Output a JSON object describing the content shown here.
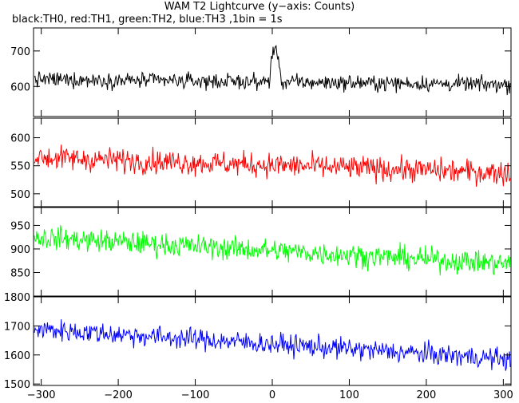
{
  "title": "WAM T2 Lightcurve (y−axis: Counts)",
  "subtitle": "black:TH0, red:TH1, green:TH2, blue:TH3 ,1bin = 1s",
  "chart_data": [
    {
      "type": "line",
      "name": "TH0",
      "color": "#000000",
      "xlim": [
        -310,
        310
      ],
      "ylim": [
        515,
        765
      ],
      "yticks": [
        600,
        700
      ],
      "base": [
        620,
        605
      ],
      "noise": 28,
      "burst": true
    },
    {
      "type": "line",
      "name": "TH1",
      "color": "#ff0000",
      "xlim": [
        -310,
        310
      ],
      "ylim": [
        477,
        635
      ],
      "yticks": [
        500,
        550,
        600
      ],
      "base": [
        565,
        537
      ],
      "noise": 28
    },
    {
      "type": "line",
      "name": "TH2",
      "color": "#00ff00",
      "xlim": [
        -310,
        310
      ],
      "ylim": [
        800,
        988
      ],
      "yticks": [
        850,
        900,
        950
      ],
      "base": [
        925,
        868
      ],
      "noise": 32
    },
    {
      "type": "line",
      "name": "TH3",
      "color": "#0000ff",
      "xlim": [
        -310,
        310
      ],
      "ylim": [
        1495,
        1800
      ],
      "yticks": [
        1500,
        1600,
        1700,
        1800
      ],
      "base": [
        1690,
        1585
      ],
      "noise": 48
    }
  ],
  "xaxis": {
    "ticks": [
      -300,
      -200,
      -100,
      0,
      100,
      200,
      300
    ],
    "labels": [
      "−300",
      "−200",
      "−100",
      "0",
      "100",
      "200",
      "300"
    ]
  }
}
